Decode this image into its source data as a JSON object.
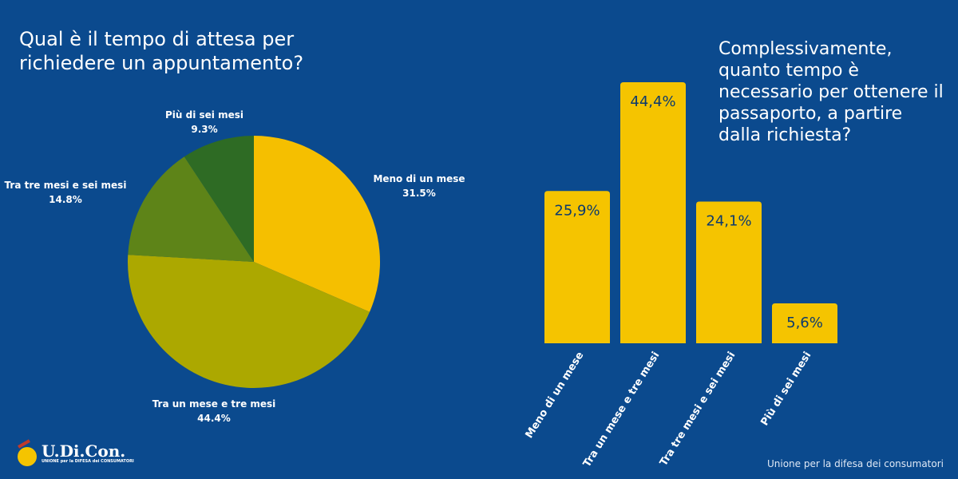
{
  "chart_data": [
    {
      "type": "pie",
      "title": "Qual è il tempo di attesa per richiedere un appuntamento?",
      "categories": [
        "Meno di un mese",
        "Tra un mese e tre mesi",
        "Tra tre mesi e sei mesi",
        "Più di sei mesi"
      ],
      "values": [
        31.5,
        44.4,
        14.8,
        9.3
      ],
      "labels": [
        "31.5%",
        "44.4%",
        "14.8%",
        "9.3%"
      ],
      "colors": [
        "#f5bf00",
        "#aca800",
        "#5e8418",
        "#2e6b24"
      ]
    },
    {
      "type": "bar",
      "title": "Complessivamente, quanto tempo è necessario per ottenere il passaporto, a partire dalla richiesta?",
      "categories": [
        "Meno di un mese",
        "Tra un mese e tre mesi",
        "Tra tre mesi e sei mesi",
        "Più di sei mesi"
      ],
      "values": [
        25.9,
        44.4,
        24.1,
        5.6
      ],
      "labels": [
        "25,9%",
        "44,4%",
        "24,1%",
        "5,6%"
      ],
      "color": "#f5c400",
      "ylim": [
        0,
        44.4
      ]
    }
  ],
  "footer": "Unione per la difesa dei consumatori",
  "logo": {
    "name": "U.Di.Con.",
    "subtitle": "UNIONE per la DIFESA dei CONSUMATORI"
  }
}
